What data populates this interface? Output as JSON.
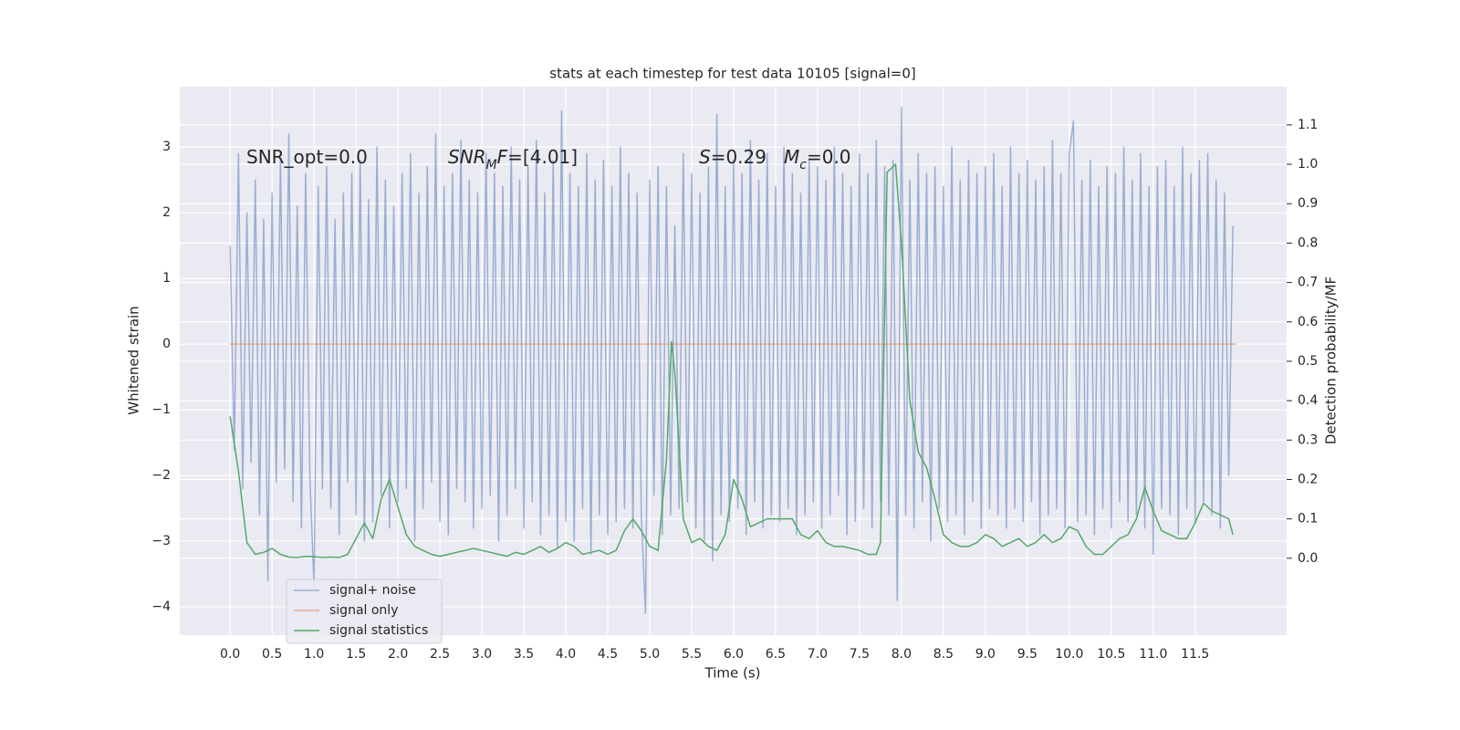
{
  "chart_data": {
    "type": "line",
    "title": "stats at each timestep for test data 10105 [signal=0]",
    "xlabel": "Time (s)",
    "ylabel": "Whitened strain",
    "y2label": "Detection probability/MF",
    "xlim": [
      -0.6,
      12.59
    ],
    "ylim": [
      -4.43,
      3.92
    ],
    "y2lim": [
      -0.195,
      1.197
    ],
    "xticks": [
      {
        "value": 0,
        "label": "0.0"
      },
      {
        "value": 0.5,
        "label": "0.5"
      },
      {
        "value": 1,
        "label": "1.0"
      },
      {
        "value": 1.5,
        "label": "1.5"
      },
      {
        "value": 2,
        "label": "2.0"
      },
      {
        "value": 2.5,
        "label": "2.5"
      },
      {
        "value": 3,
        "label": "3.0"
      },
      {
        "value": 3.5,
        "label": "3.5"
      },
      {
        "value": 4,
        "label": "4.0"
      },
      {
        "value": 4.5,
        "label": "4.5"
      },
      {
        "value": 5,
        "label": "5.0"
      },
      {
        "value": 5.5,
        "label": "5.5"
      },
      {
        "value": 6,
        "label": "6.0"
      },
      {
        "value": 6.5,
        "label": "6.5"
      },
      {
        "value": 7,
        "label": "7.0"
      },
      {
        "value": 7.5,
        "label": "7.5"
      },
      {
        "value": 8,
        "label": "8.0"
      },
      {
        "value": 8.5,
        "label": "8.5"
      },
      {
        "value": 9,
        "label": "9.0"
      },
      {
        "value": 9.5,
        "label": "9.5"
      },
      {
        "value": 10,
        "label": "10.0"
      },
      {
        "value": 10.5,
        "label": "10.5"
      },
      {
        "value": 11,
        "label": "11.0"
      },
      {
        "value": 11.5,
        "label": "11.5"
      }
    ],
    "yticks": [
      {
        "value": -4,
        "label": "−4"
      },
      {
        "value": -3,
        "label": "−3"
      },
      {
        "value": -2,
        "label": "−2"
      },
      {
        "value": -1,
        "label": "−1"
      },
      0,
      1,
      2,
      3
    ],
    "y2ticks": [
      {
        "value": 0,
        "label": "0.0"
      },
      {
        "value": 0.1,
        "label": "0.1"
      },
      {
        "value": 0.2,
        "label": "0.2"
      },
      {
        "value": 0.3,
        "label": "0.3"
      },
      {
        "value": 0.4,
        "label": "0.4"
      },
      {
        "value": 0.5,
        "label": "0.5"
      },
      {
        "value": 0.6,
        "label": "0.6"
      },
      {
        "value": 0.7,
        "label": "0.7"
      },
      {
        "value": 0.8,
        "label": "0.8"
      },
      {
        "value": 0.9,
        "label": "0.9"
      },
      {
        "value": 1,
        "label": "1.0"
      },
      {
        "value": 1.1,
        "label": "1.1"
      }
    ],
    "grid": true,
    "legend": "lower left",
    "annotations": [
      {
        "parts": [
          {
            "text": "SNR_opt=0.0"
          }
        ]
      },
      {
        "parts": [
          {
            "text": "SNR",
            "italic": true
          },
          {
            "text": "M",
            "italic": true,
            "sub": true
          },
          {
            "text": "F",
            "italic": true
          },
          {
            "text": "=[4.01]"
          }
        ]
      },
      {
        "parts": [
          {
            "text": "S",
            "italic": true
          },
          {
            "text": "=0.29"
          }
        ]
      },
      {
        "parts": [
          {
            "text": "M",
            "italic": true
          },
          {
            "text": "c",
            "italic": true,
            "sub": true
          },
          {
            "text": "=0.0"
          }
        ]
      }
    ],
    "series": [
      {
        "name": "signal+ noise",
        "color": "#4c72b0",
        "opacity": 0.5,
        "axis": "y",
        "x": [
          0,
          0.05,
          0.1,
          0.15,
          0.2,
          0.25,
          0.3,
          0.35,
          0.4,
          0.45,
          0.5,
          0.55,
          0.6,
          0.65,
          0.7,
          0.75,
          0.8,
          0.85,
          0.9,
          0.95,
          1,
          1.05,
          1.1,
          1.15,
          1.2,
          1.25,
          1.3,
          1.35,
          1.4,
          1.45,
          1.5,
          1.55,
          1.6,
          1.65,
          1.7,
          1.75,
          1.8,
          1.85,
          1.9,
          1.95,
          2,
          2.05,
          2.1,
          2.15,
          2.2,
          2.25,
          2.3,
          2.35,
          2.4,
          2.45,
          2.5,
          2.55,
          2.6,
          2.65,
          2.7,
          2.75,
          2.8,
          2.85,
          2.9,
          2.95,
          3,
          3.05,
          3.1,
          3.15,
          3.2,
          3.25,
          3.3,
          3.35,
          3.4,
          3.45,
          3.5,
          3.55,
          3.6,
          3.65,
          3.7,
          3.75,
          3.8,
          3.85,
          3.9,
          3.95,
          4,
          4.05,
          4.1,
          4.15,
          4.2,
          4.25,
          4.3,
          4.35,
          4.4,
          4.45,
          4.5,
          4.55,
          4.6,
          4.65,
          4.7,
          4.75,
          4.8,
          4.85,
          4.9,
          4.95,
          5,
          5.05,
          5.1,
          5.15,
          5.2,
          5.25,
          5.3,
          5.35,
          5.4,
          5.45,
          5.5,
          5.55,
          5.6,
          5.65,
          5.7,
          5.75,
          5.8,
          5.85,
          5.9,
          5.95,
          6,
          6.05,
          6.1,
          6.15,
          6.2,
          6.25,
          6.3,
          6.35,
          6.4,
          6.45,
          6.5,
          6.55,
          6.6,
          6.65,
          6.7,
          6.75,
          6.8,
          6.85,
          6.9,
          6.95,
          7,
          7.05,
          7.1,
          7.15,
          7.2,
          7.25,
          7.3,
          7.35,
          7.4,
          7.45,
          7.5,
          7.55,
          7.6,
          7.65,
          7.7,
          7.75,
          7.8,
          7.85,
          7.9,
          7.95,
          8,
          8.05,
          8.1,
          8.15,
          8.2,
          8.25,
          8.3,
          8.35,
          8.4,
          8.45,
          8.5,
          8.55,
          8.6,
          8.65,
          8.7,
          8.75,
          8.8,
          8.85,
          8.9,
          8.95,
          9,
          9.05,
          9.1,
          9.15,
          9.2,
          9.25,
          9.3,
          9.35,
          9.4,
          9.45,
          9.5,
          9.55,
          9.6,
          9.65,
          9.7,
          9.75,
          9.8,
          9.85,
          9.9,
          9.95,
          10,
          10.05,
          10.1,
          10.15,
          10.2,
          10.25,
          10.3,
          10.35,
          10.4,
          10.45,
          10.5,
          10.55,
          10.6,
          10.65,
          10.7,
          10.75,
          10.8,
          10.85,
          10.9,
          10.95,
          11,
          11.05,
          11.1,
          11.15,
          11.2,
          11.25,
          11.3,
          11.35,
          11.4,
          11.45,
          11.5,
          11.55,
          11.6,
          11.65,
          11.7,
          11.75,
          11.8,
          11.85,
          11.9,
          11.95
        ],
        "values": [
          1.5,
          -1.6,
          2.9,
          -2.2,
          2.0,
          -1.8,
          2.5,
          -2.6,
          1.9,
          -3.6,
          2.3,
          -2.1,
          2.8,
          -1.9,
          3.2,
          -2.4,
          2.1,
          -2.8,
          2.6,
          -2.0,
          -3.7,
          2.4,
          -2.2,
          2.7,
          -2.5,
          1.9,
          -2.9,
          2.3,
          -2.1,
          2.6,
          -2.6,
          2.8,
          -3.0,
          2.2,
          -2.7,
          3.0,
          -2.3,
          2.5,
          -2.8,
          2.1,
          -2.4,
          2.6,
          -2.2,
          2.9,
          -3.0,
          2.3,
          -2.5,
          2.7,
          -2.1,
          3.2,
          -2.7,
          2.4,
          -2.9,
          2.6,
          -2.2,
          3.1,
          -2.4,
          2.5,
          -2.8,
          2.3,
          -2.5,
          2.9,
          -2.3,
          2.6,
          -3.0,
          2.4,
          -2.6,
          3.0,
          -2.2,
          2.5,
          -2.8,
          2.7,
          -2.4,
          3.1,
          -2.9,
          2.3,
          -2.6,
          2.8,
          -3.1,
          3.55,
          -2.7,
          2.6,
          -3.0,
          2.4,
          -2.5,
          2.9,
          -3.2,
          2.5,
          -2.6,
          2.8,
          -2.9,
          2.4,
          -2.7,
          3.0,
          -2.5,
          2.6,
          -2.8,
          2.3,
          -2.6,
          -4.1,
          2.5,
          -2.3,
          2.7,
          -2.9,
          2.4,
          -2.6,
          1.8,
          -2.5,
          2.9,
          -2.4,
          2.6,
          -2.8,
          2.3,
          -3.0,
          2.7,
          -3.3,
          3.5,
          -2.6,
          2.4,
          -2.7,
          2.8,
          -2.5,
          2.6,
          -2.9,
          3.1,
          -2.4,
          2.5,
          -2.8,
          2.9,
          -2.6,
          2.4,
          -2.7,
          3.0,
          -2.5,
          2.6,
          -2.9,
          2.3,
          -2.6,
          2.8,
          -2.4,
          2.7,
          -2.8,
          2.5,
          -2.6,
          3.0,
          -2.3,
          2.6,
          -2.9,
          2.4,
          -2.7,
          2.9,
          -2.5,
          2.6,
          -2.8,
          3.1,
          -2.4,
          2.7,
          -2.6,
          2.8,
          -3.9,
          3.6,
          -2.6,
          2.5,
          -2.8,
          2.9,
          -2.4,
          2.6,
          -3.0,
          2.7,
          -2.5,
          2.4,
          -2.7,
          3.0,
          -2.6,
          2.5,
          -2.9,
          2.8,
          -2.4,
          2.6,
          -2.8,
          2.7,
          -2.5,
          2.9,
          -2.6,
          2.4,
          -2.8,
          3.0,
          -2.5,
          2.6,
          -2.7,
          2.8,
          -2.4,
          2.5,
          -2.9,
          2.7,
          -2.6,
          3.1,
          -2.5,
          2.6,
          -2.8,
          2.9,
          3.4,
          -2.7,
          2.5,
          -2.6,
          2.8,
          -2.9,
          2.4,
          -2.5,
          2.7,
          -2.8,
          2.6,
          -2.4,
          3.0,
          -2.7,
          2.5,
          -2.6,
          2.9,
          -2.8,
          2.4,
          -3.2,
          2.7,
          -2.5,
          2.8,
          -2.6,
          2.4,
          -2.9,
          3.0,
          -2.5,
          2.6,
          -2.7,
          2.8,
          -2.4,
          2.9,
          -2.6,
          2.5,
          -2.8,
          2.3,
          -2.0,
          1.8
        ]
      },
      {
        "name": "signal only",
        "color": "#dd8452",
        "opacity": 0.6,
        "axis": "y",
        "x": [
          0,
          11.99
        ],
        "values": [
          0,
          0
        ]
      },
      {
        "name": "signal statistics",
        "color": "#55a868",
        "opacity": 1,
        "axis": "y2",
        "x": [
          0,
          0.1,
          0.2,
          0.3,
          0.4,
          0.5,
          0.6,
          0.7,
          0.8,
          0.9,
          1,
          1.1,
          1.2,
          1.3,
          1.4,
          1.5,
          1.6,
          1.7,
          1.8,
          1.9,
          2,
          2.1,
          2.2,
          2.3,
          2.4,
          2.5,
          2.6,
          2.7,
          2.8,
          2.9,
          3,
          3.1,
          3.2,
          3.3,
          3.4,
          3.5,
          3.6,
          3.7,
          3.8,
          3.9,
          4,
          4.1,
          4.2,
          4.3,
          4.4,
          4.5,
          4.6,
          4.7,
          4.8,
          4.9,
          5,
          5.1,
          5.2,
          5.26,
          5.3,
          5.4,
          5.5,
          5.6,
          5.7,
          5.8,
          5.9,
          6,
          6.1,
          6.2,
          6.3,
          6.4,
          6.5,
          6.6,
          6.7,
          6.8,
          6.9,
          7,
          7.1,
          7.2,
          7.3,
          7.4,
          7.5,
          7.6,
          7.7,
          7.75,
          7.83,
          7.93,
          8.0,
          8.1,
          8.2,
          8.3,
          8.4,
          8.5,
          8.6,
          8.7,
          8.8,
          8.9,
          9,
          9.1,
          9.2,
          9.3,
          9.4,
          9.5,
          9.6,
          9.7,
          9.8,
          9.9,
          10,
          10.1,
          10.2,
          10.3,
          10.4,
          10.5,
          10.6,
          10.7,
          10.8,
          10.9,
          11,
          11.1,
          11.2,
          11.3,
          11.4,
          11.5,
          11.6,
          11.7,
          11.8,
          11.9,
          11.95
        ],
        "values": [
          0.36,
          0.22,
          0.04,
          0.01,
          0.015,
          0.025,
          0.01,
          0.003,
          0.002,
          0.005,
          0.004,
          0.002,
          0.003,
          0.002,
          0.01,
          0.05,
          0.09,
          0.05,
          0.15,
          0.2,
          0.13,
          0.06,
          0.03,
          0.02,
          0.01,
          0.005,
          0.01,
          0.015,
          0.02,
          0.025,
          0.02,
          0.015,
          0.01,
          0.005,
          0.015,
          0.01,
          0.02,
          0.03,
          0.015,
          0.025,
          0.04,
          0.03,
          0.01,
          0.015,
          0.02,
          0.01,
          0.02,
          0.07,
          0.1,
          0.07,
          0.03,
          0.02,
          0.25,
          0.55,
          0.47,
          0.1,
          0.04,
          0.05,
          0.03,
          0.02,
          0.06,
          0.2,
          0.15,
          0.08,
          0.09,
          0.1,
          0.1,
          0.1,
          0.1,
          0.06,
          0.05,
          0.07,
          0.04,
          0.03,
          0.03,
          0.025,
          0.02,
          0.01,
          0.01,
          0.04,
          0.98,
          1.0,
          0.8,
          0.4,
          0.27,
          0.23,
          0.15,
          0.06,
          0.04,
          0.03,
          0.03,
          0.04,
          0.06,
          0.05,
          0.03,
          0.04,
          0.05,
          0.03,
          0.04,
          0.06,
          0.04,
          0.05,
          0.08,
          0.07,
          0.03,
          0.01,
          0.01,
          0.03,
          0.05,
          0.06,
          0.1,
          0.18,
          0.12,
          0.07,
          0.06,
          0.05,
          0.05,
          0.09,
          0.14,
          0.12,
          0.11,
          0.1,
          0.06
        ]
      }
    ]
  }
}
